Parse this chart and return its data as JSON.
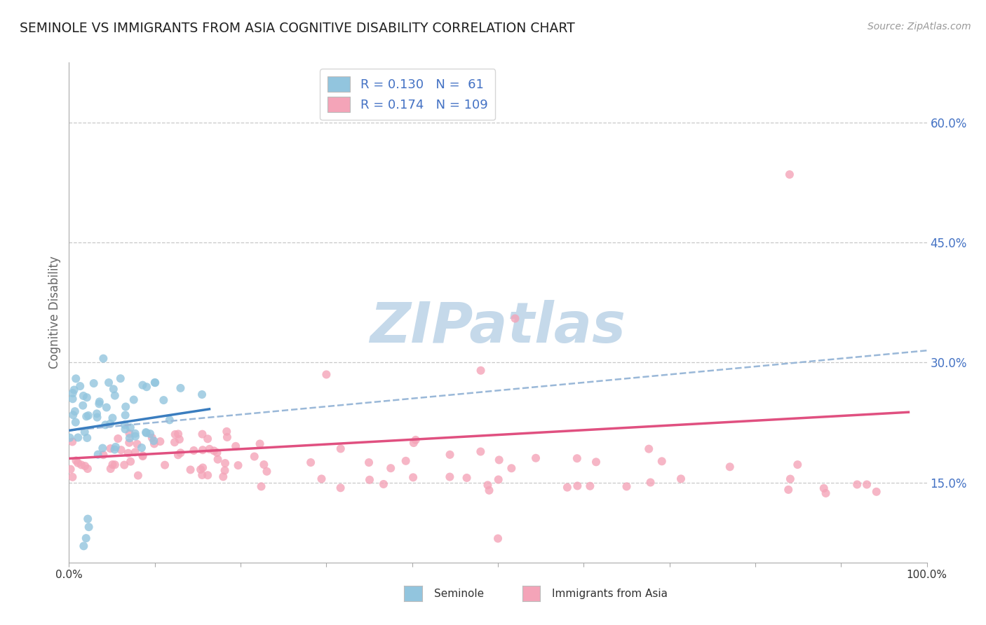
{
  "title": "SEMINOLE VS IMMIGRANTS FROM ASIA COGNITIVE DISABILITY CORRELATION CHART",
  "source_text": "Source: ZipAtlas.com",
  "ylabel": "Cognitive Disability",
  "xlim": [
    0,
    1.0
  ],
  "ylim": [
    0.05,
    0.675
  ],
  "yticks": [
    0.15,
    0.3,
    0.45,
    0.6
  ],
  "ytick_labels": [
    "15.0%",
    "30.0%",
    "45.0%",
    "60.0%"
  ],
  "legend_R1": "R = 0.130",
  "legend_N1": "N =  61",
  "legend_R2": "R = 0.174",
  "legend_N2": "N = 109",
  "seminole_color": "#92c5de",
  "immigrants_color": "#f4a4b8",
  "trend_blue": "#3a7dbf",
  "trend_pink": "#e05080",
  "dashed_color": "#9ab8d8",
  "background": "#ffffff",
  "watermark": "ZIPatlas",
  "watermark_color": "#c5d9ea",
  "grid_color": "#c8c8c8",
  "title_color": "#222222",
  "axis_label_color": "#666666",
  "right_tick_color": "#4472c4",
  "bottom_label_color": "#333333"
}
